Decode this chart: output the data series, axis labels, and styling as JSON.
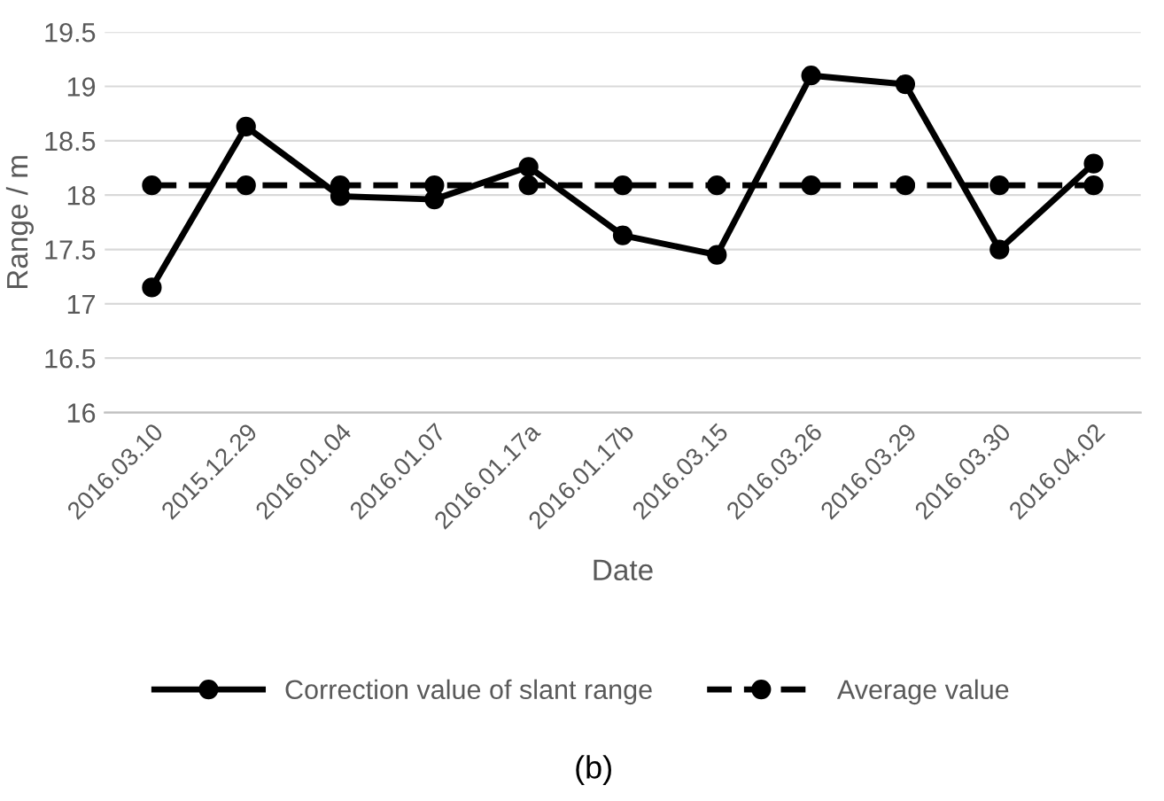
{
  "chart_data": {
    "type": "line",
    "xlabel": "Date",
    "ylabel": "Range / m",
    "categories": [
      "2016.03.10",
      "2015.12.29",
      "2016.01.04",
      "2016.01.07",
      "2016.01.17a",
      "2016.01.17b",
      "2016.03.15",
      "2016.03.26",
      "2016.03.29",
      "2016.03.30",
      "2016.04.02"
    ],
    "series": [
      {
        "name": "Correction value of slant range",
        "color": "#000000",
        "line_style": "solid",
        "values": [
          17.15,
          18.63,
          17.99,
          17.96,
          18.26,
          17.63,
          17.45,
          19.1,
          19.02,
          17.5,
          18.29
        ]
      },
      {
        "name": "Average value",
        "color": "#000000",
        "line_style": "dashed",
        "values": [
          18.09,
          18.09,
          18.09,
          18.09,
          18.09,
          18.09,
          18.09,
          18.09,
          18.09,
          18.09,
          18.09
        ]
      }
    ],
    "ylim": [
      16,
      19.5
    ],
    "yticks": [
      16,
      16.5,
      17,
      17.5,
      18,
      18.5,
      19,
      19.5
    ],
    "grid": "y",
    "legend": "bottom",
    "marker": "circle",
    "annotations": [
      "(b)"
    ]
  }
}
